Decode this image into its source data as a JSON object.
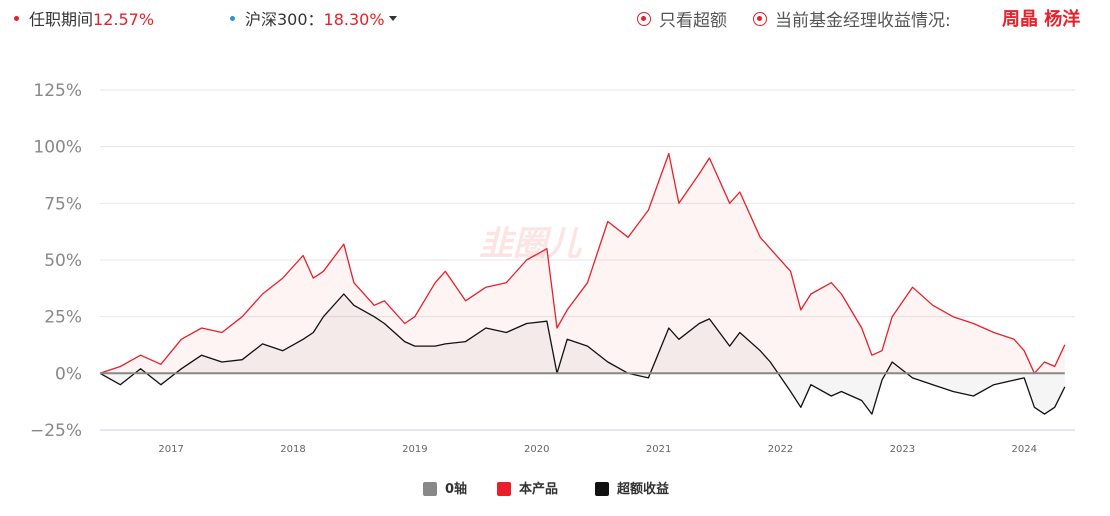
{
  "header": {
    "tenure_label": "任职期间",
    "tenure_value": "12.57%",
    "benchmark_label": "沪深300：",
    "benchmark_value": "18.30%",
    "only_excess_label": "只看超额",
    "current_manager_label": "当前基金经理收益情况:",
    "manager_names": "周晶 杨洋"
  },
  "watermark": "韭圈儿",
  "colors": {
    "product": "#e8202a",
    "excess": "#111111",
    "zero_axis": "#888888",
    "benchmark_dot": "#2f8fe0",
    "grid": "#e6e6e6"
  },
  "legend": {
    "items": [
      {
        "label": "0轴",
        "color": "#888888"
      },
      {
        "label": "本产品",
        "color": "#e8202a"
      },
      {
        "label": "超额收益",
        "color": "#111111"
      }
    ]
  },
  "chart_data": {
    "type": "line",
    "title": "",
    "xlabel": "",
    "ylabel": "",
    "ylim": [
      -25,
      125
    ],
    "xlim": [
      "2016-06",
      "2024-06"
    ],
    "ytick_labels": [
      "125%",
      "100%",
      "75%",
      "50%",
      "25%",
      "0%",
      "−25%"
    ],
    "ytick_values": [
      125,
      100,
      75,
      50,
      25,
      0,
      -25
    ],
    "xtick_labels": [
      "2017",
      "2018",
      "2019",
      "2020",
      "2021",
      "2022",
      "2023",
      "2024"
    ],
    "xtick_values": [
      "2017-01",
      "2018-01",
      "2019-01",
      "2020-01",
      "2021-01",
      "2022-01",
      "2023-01",
      "2024-01"
    ],
    "grid": true,
    "legend_position": "bottom-center",
    "series": [
      {
        "name": "本产品",
        "color": "#e8202a",
        "x": [
          "2016-06",
          "2016-08",
          "2016-10",
          "2016-12",
          "2017-02",
          "2017-04",
          "2017-06",
          "2017-08",
          "2017-10",
          "2017-12",
          "2018-02",
          "2018-03",
          "2018-04",
          "2018-06",
          "2018-07",
          "2018-09",
          "2018-10",
          "2018-12",
          "2019-01",
          "2019-03",
          "2019-04",
          "2019-06",
          "2019-08",
          "2019-10",
          "2019-12",
          "2020-02",
          "2020-03",
          "2020-04",
          "2020-06",
          "2020-08",
          "2020-10",
          "2020-12",
          "2021-02",
          "2021-03",
          "2021-05",
          "2021-06",
          "2021-08",
          "2021-09",
          "2021-11",
          "2021-12",
          "2022-02",
          "2022-03",
          "2022-04",
          "2022-06",
          "2022-07",
          "2022-09",
          "2022-10",
          "2022-11",
          "2022-12",
          "2023-02",
          "2023-04",
          "2023-06",
          "2023-08",
          "2023-10",
          "2023-12",
          "2024-01",
          "2024-02",
          "2024-03",
          "2024-04",
          "2024-05"
        ],
        "values": [
          0,
          3,
          8,
          4,
          15,
          20,
          18,
          25,
          35,
          42,
          52,
          42,
          45,
          57,
          40,
          30,
          32,
          22,
          25,
          40,
          45,
          32,
          38,
          40,
          50,
          55,
          20,
          28,
          40,
          67,
          60,
          72,
          97,
          75,
          88,
          95,
          75,
          80,
          60,
          55,
          45,
          28,
          35,
          40,
          35,
          20,
          8,
          10,
          25,
          38,
          30,
          25,
          22,
          18,
          15,
          10,
          0,
          5,
          3,
          12.57
        ]
      },
      {
        "name": "超额收益",
        "color": "#111111",
        "x": [
          "2016-06",
          "2016-08",
          "2016-10",
          "2016-12",
          "2017-02",
          "2017-04",
          "2017-06",
          "2017-08",
          "2017-10",
          "2017-12",
          "2018-02",
          "2018-03",
          "2018-04",
          "2018-06",
          "2018-07",
          "2018-09",
          "2018-10",
          "2018-12",
          "2019-01",
          "2019-03",
          "2019-04",
          "2019-06",
          "2019-08",
          "2019-10",
          "2019-12",
          "2020-02",
          "2020-03",
          "2020-04",
          "2020-06",
          "2020-08",
          "2020-10",
          "2020-12",
          "2021-02",
          "2021-03",
          "2021-05",
          "2021-06",
          "2021-08",
          "2021-09",
          "2021-11",
          "2021-12",
          "2022-02",
          "2022-03",
          "2022-04",
          "2022-06",
          "2022-07",
          "2022-09",
          "2022-10",
          "2022-11",
          "2022-12",
          "2023-02",
          "2023-04",
          "2023-06",
          "2023-08",
          "2023-10",
          "2023-12",
          "2024-01",
          "2024-02",
          "2024-03",
          "2024-04",
          "2024-05"
        ],
        "values": [
          0,
          -5,
          2,
          -5,
          2,
          8,
          5,
          6,
          13,
          10,
          15,
          18,
          25,
          35,
          30,
          25,
          22,
          14,
          12,
          12,
          13,
          14,
          20,
          18,
          22,
          23,
          0,
          15,
          12,
          5,
          0,
          -2,
          20,
          15,
          22,
          24,
          12,
          18,
          10,
          5,
          -8,
          -15,
          -5,
          -10,
          -8,
          -12,
          -18,
          -3,
          5,
          -2,
          -5,
          -8,
          -10,
          -5,
          -3,
          -2,
          -15,
          -18,
          -15,
          -6
        ]
      },
      {
        "name": "0轴",
        "color": "#888888",
        "x": [
          "2016-06",
          "2024-05"
        ],
        "values": [
          0,
          0
        ]
      }
    ]
  }
}
